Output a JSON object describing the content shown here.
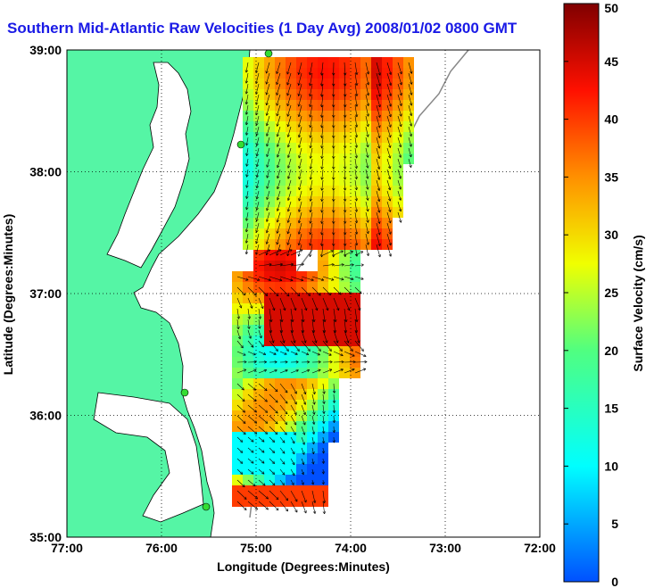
{
  "title": "Southern Mid-Atlantic Raw Velocities (1 Day Avg) 2008/01/02 0800 GMT",
  "map": {
    "xlabel": "Longitude (Degrees:Minutes)",
    "ylabel": "Latitude (Degrees:Minutes)",
    "x_ticks": [
      "77:00",
      "76:00",
      "75:00",
      "74:00",
      "73:00",
      "72:00"
    ],
    "y_ticks": [
      "39:00",
      "38:00",
      "37:00",
      "36:00",
      "35:00"
    ],
    "xlim": [
      -77,
      -72
    ],
    "ylim": [
      35,
      39
    ],
    "grid": true,
    "land_color": "#55f5a5",
    "sea_color": "#ffffff"
  },
  "colorbar": {
    "label": "Surface Velocity (cm/s)",
    "ticks": [
      "0",
      "5",
      "10",
      "15",
      "20",
      "25",
      "30",
      "35",
      "40",
      "45",
      "50"
    ],
    "range": [
      0,
      50
    ],
    "colormap": "jet"
  }
}
